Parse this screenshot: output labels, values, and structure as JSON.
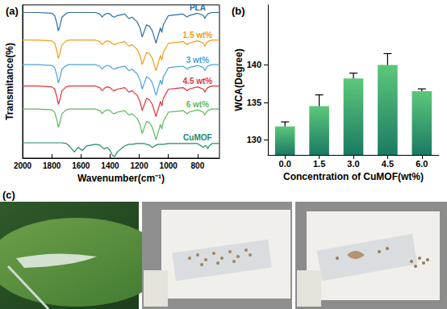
{
  "chart_data": [
    {
      "type": "line",
      "title": "(a)",
      "xlabel": "Wavenumber(cm⁻¹)",
      "ylabel": "Transmitance(%)",
      "x": [
        2000,
        1900,
        1800,
        1780,
        1765,
        1755,
        1745,
        1730,
        1700,
        1680,
        1645,
        1620,
        1590,
        1560,
        1500,
        1470,
        1455,
        1440,
        1420,
        1400,
        1385,
        1370,
        1350,
        1300,
        1270,
        1250,
        1215,
        1195,
        1180,
        1165,
        1150,
        1130,
        1110,
        1085,
        1070,
        1055,
        1045,
        1035,
        1000,
        950,
        900,
        870,
        860,
        800,
        760,
        750,
        740,
        730,
        720,
        700,
        650
      ],
      "xlim": [
        2000,
        650
      ],
      "xticks": [
        2000,
        1800,
        1600,
        1400,
        1200,
        1000,
        800
      ],
      "ylim": [
        0,
        100
      ],
      "tick_labels": "x",
      "series": [
        {
          "name": "PLA",
          "color": "#2e6da4",
          "values": [
            95,
            95,
            94.5,
            93,
            88,
            83,
            86,
            92,
            94.5,
            95,
            95,
            95,
            95,
            95,
            95,
            94,
            92,
            93.5,
            94.5,
            94,
            92.5,
            92,
            93,
            94,
            91,
            92,
            89,
            85,
            79,
            83,
            87,
            86,
            83,
            75,
            80,
            85,
            82,
            87,
            93,
            93.5,
            94,
            92,
            93,
            94.5,
            93,
            91,
            93,
            94,
            94.5,
            95,
            95
          ]
        },
        {
          "name": "1.5 wt%",
          "color": "#f39c12",
          "values": [
            77,
            77,
            76.5,
            75,
            70,
            65,
            68,
            74,
            76.5,
            77,
            77,
            77,
            77,
            77,
            77,
            76,
            74,
            75.5,
            76.5,
            76,
            74.5,
            74,
            75,
            76,
            73,
            74,
            71,
            67,
            61,
            65,
            69,
            68,
            65,
            57,
            62,
            67,
            64,
            69,
            75,
            75.5,
            76,
            74,
            75,
            76.5,
            75,
            73,
            75,
            76,
            76.5,
            77,
            77
          ]
        },
        {
          "name": "3 wt%",
          "color": "#4aa3df",
          "values": [
            61,
            61,
            60.5,
            59,
            54,
            49,
            52,
            58,
            60.5,
            61,
            61,
            61,
            61,
            61,
            61,
            60,
            58,
            59.5,
            60.5,
            60,
            58.5,
            58,
            59,
            60,
            57,
            58,
            55,
            51,
            45,
            49,
            53,
            52,
            49,
            41,
            46,
            51,
            48,
            53,
            59,
            59.5,
            60,
            58,
            59,
            60.5,
            59,
            57,
            59,
            60,
            60.5,
            61,
            61
          ]
        },
        {
          "name": "4.5 wt%",
          "color": "#e0323c",
          "values": [
            47,
            47,
            46.5,
            45,
            40,
            35,
            38,
            44,
            46.5,
            47,
            47,
            47,
            47,
            47,
            47,
            46,
            44,
            45.5,
            46.5,
            46,
            44.5,
            44,
            45,
            46,
            43,
            44,
            41,
            37,
            31,
            35,
            39,
            38,
            35,
            27,
            32,
            37,
            34,
            39,
            45,
            45.5,
            46,
            44,
            45,
            46.5,
            45,
            43,
            45,
            46,
            46.5,
            47,
            47
          ]
        },
        {
          "name": "6 wt%",
          "color": "#5cb85c",
          "values": [
            32,
            32,
            31.5,
            30,
            25,
            20,
            23,
            29,
            31.5,
            32,
            32,
            32,
            32,
            32,
            32,
            31,
            29,
            30.5,
            31.5,
            31,
            29.5,
            29,
            30,
            31,
            28,
            29,
            26,
            22,
            16,
            20,
            24,
            23,
            20,
            12,
            17,
            22,
            19,
            24,
            30,
            30.5,
            31,
            29,
            30,
            31.5,
            30,
            28,
            30,
            31,
            31.5,
            32,
            32
          ]
        },
        {
          "name": "CuMOF",
          "color": "#1e8a6e",
          "values": [
            10,
            10,
            10,
            10,
            10,
            10,
            10,
            10,
            9.5,
            8,
            4,
            7,
            5,
            8,
            9,
            8.5,
            7,
            6,
            7,
            5,
            2,
            1,
            4,
            8,
            9,
            9,
            9.5,
            9.5,
            9.5,
            9.5,
            9,
            8.5,
            7,
            8.5,
            9,
            9,
            9,
            9,
            9.5,
            9.5,
            9.5,
            9.5,
            9.5,
            9.5,
            7,
            8,
            8,
            6,
            8,
            9.5,
            9.5
          ]
        }
      ]
    },
    {
      "type": "bar",
      "title": "(b)",
      "xlabel": "Concentration of CuMOF(wt%)",
      "ylabel": "WCA(Degree)",
      "categories": [
        "0.0",
        "1.5",
        "3.0",
        "4.5",
        "6.0"
      ],
      "values": [
        131.8,
        134.5,
        138.2,
        140.0,
        136.5
      ],
      "errors": [
        0.6,
        1.5,
        0.7,
        1.5,
        0.3
      ],
      "color": "#5cc87a",
      "ylim": [
        128,
        148
      ],
      "yticks": [
        130,
        135,
        140
      ],
      "grid": false
    }
  ],
  "photo_panel": {
    "title": "(c)"
  }
}
